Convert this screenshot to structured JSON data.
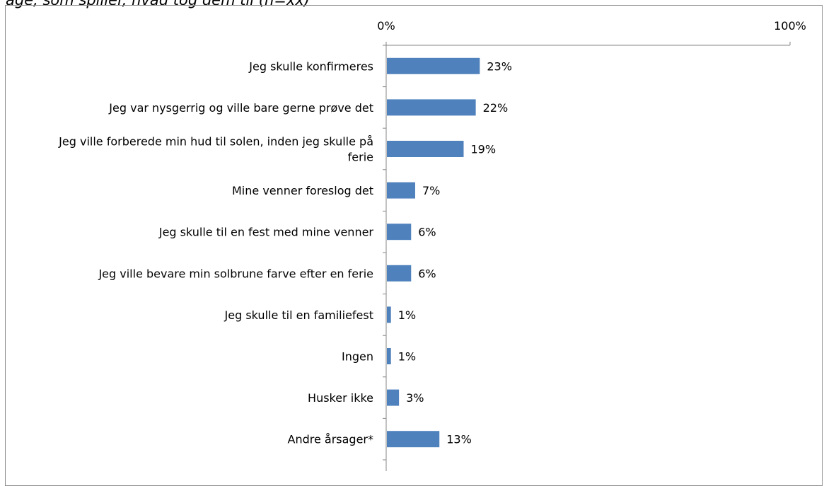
{
  "figure": {
    "cut_title": "age, som spiller, hvad tog dem til (n=xx)"
  },
  "chart_data": {
    "type": "bar",
    "orientation": "horizontal",
    "categories": [
      "Jeg skulle konfirmeres",
      "Jeg var nysgerrig og ville bare gerne prøve det",
      "Jeg ville forberede min hud til solen, inden jeg skulle på ferie",
      "Mine venner foreslog det",
      "Jeg skulle til en fest med mine venner",
      "Jeg ville bevare min solbrune farve efter en ferie",
      "Jeg skulle til en familiefest",
      "Ingen",
      "Husker ikke",
      "Andre årsager*"
    ],
    "values": [
      23,
      22,
      19,
      7,
      6,
      6,
      1,
      1,
      3,
      13
    ],
    "value_labels": [
      "23%",
      "22%",
      "19%",
      "7%",
      "6%",
      "6%",
      "1%",
      "1%",
      "3%",
      "13%"
    ],
    "category_label_lines": [
      [
        "Jeg skulle konfirmeres"
      ],
      [
        "Jeg var nysgerrig og ville bare gerne prøve det"
      ],
      [
        "Jeg ville forberede min hud til solen, inden jeg skulle på",
        "ferie"
      ],
      [
        "Mine venner foreslog det"
      ],
      [
        "Jeg skulle til en fest med mine venner"
      ],
      [
        "Jeg ville bevare min solbrune farve efter en ferie"
      ],
      [
        "Jeg skulle til en familiefest"
      ],
      [
        "Ingen"
      ],
      [
        "Husker ikke"
      ],
      [
        "Andre årsager*"
      ]
    ],
    "xlim": [
      0,
      100
    ],
    "x_tick_labels": [
      "0%",
      "100%"
    ],
    "x_axis_position": "top",
    "grid": false,
    "bar_color": "#4f81bd"
  }
}
